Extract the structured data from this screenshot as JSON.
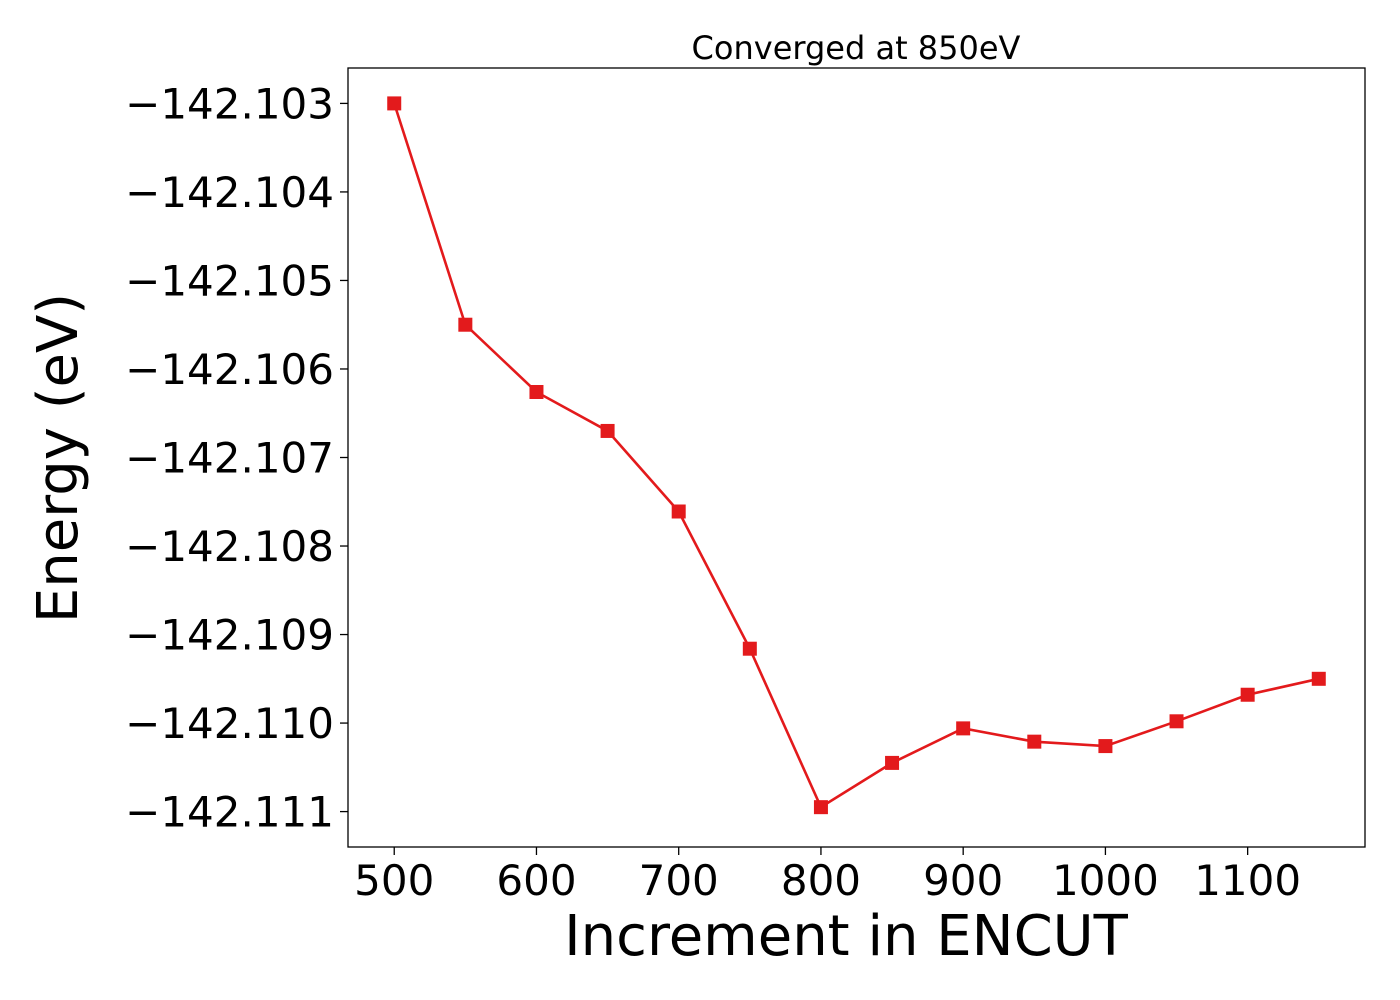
{
  "chart_data": {
    "type": "line",
    "title": "Converged at 850eV",
    "xlabel": "Increment in ENCUT",
    "ylabel": "Energy (eV)",
    "xlim": [
      467.5,
      1182.5
    ],
    "ylim": [
      -142.1114,
      -142.1026
    ],
    "x_ticks": [
      500,
      600,
      700,
      800,
      900,
      1000,
      1100
    ],
    "y_ticks": [
      -142.103,
      -142.104,
      -142.105,
      -142.106,
      -142.107,
      -142.108,
      -142.109,
      -142.11,
      -142.111
    ],
    "y_tick_labels": [
      "−142.103",
      "−142.104",
      "−142.105",
      "−142.106",
      "−142.107",
      "−142.108",
      "−142.109",
      "−142.110",
      "−142.111"
    ],
    "grid": false,
    "series": [
      {
        "color": "#e31a1c",
        "marker": "square",
        "x": [
          500,
          550,
          600,
          650,
          700,
          750,
          800,
          850,
          900,
          950,
          1000,
          1050,
          1100,
          1150
        ],
        "y": [
          -142.103,
          -142.1055,
          -142.10626,
          -142.1067,
          -142.10761,
          -142.10916,
          -142.11095,
          -142.11045,
          -142.11006,
          -142.11021,
          -142.11026,
          -142.10998,
          -142.10968,
          -142.1095
        ]
      }
    ]
  }
}
